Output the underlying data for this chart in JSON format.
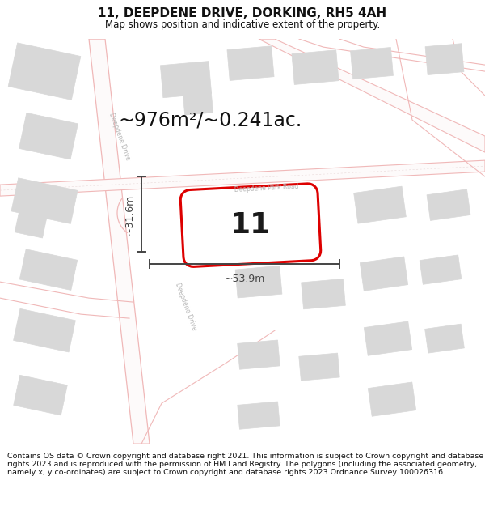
{
  "title": "11, DEEPDENE DRIVE, DORKING, RH5 4AH",
  "subtitle": "Map shows position and indicative extent of the property.",
  "footer": "Contains OS data © Crown copyright and database right 2021. This information is subject to Crown copyright and database rights 2023 and is reproduced with the permission of HM Land Registry. The polygons (including the associated geometry, namely x, y co-ordinates) are subject to Crown copyright and database rights 2023 Ordnance Survey 100026316.",
  "area_label": "~976m²/~0.241ac.",
  "plot_number": "11",
  "dim_width": "~53.9m",
  "dim_height": "~31.6m",
  "map_bg": "#ffffff",
  "road_line_color": "#f0b8b8",
  "road_centerline_color": "#d8d0d0",
  "building_color": "#d8d8d8",
  "building_edge": "#bbbbbb",
  "plot_fill": "#ffffff",
  "plot_edge": "#dd0000",
  "dim_color": "#444444",
  "road_label_color": "#b0b0b0",
  "title_fontsize": 11,
  "subtitle_fontsize": 8.5,
  "footer_fontsize": 6.8,
  "area_fontsize": 17,
  "plot_num_fontsize": 26,
  "dim_fontsize": 9
}
